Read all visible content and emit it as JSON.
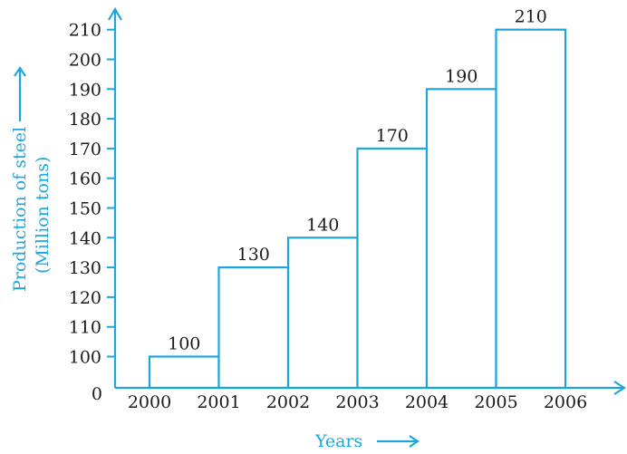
{
  "chart_data": {
    "type": "bar",
    "categories": [
      "2000",
      "2001",
      "2002",
      "2003",
      "2004",
      "2005"
    ],
    "x_ticks": [
      "2000",
      "2001",
      "2002",
      "2003",
      "2004",
      "2005",
      "2006"
    ],
    "values": [
      100,
      130,
      140,
      170,
      190,
      210
    ],
    "data_labels": [
      "100",
      "130",
      "140",
      "170",
      "190",
      "210"
    ],
    "y_ticks": [
      100,
      110,
      120,
      130,
      140,
      150,
      160,
      170,
      180,
      190,
      200,
      210
    ],
    "y_origin_label": "0",
    "y_break": true,
    "ylim": [
      90,
      210
    ],
    "title": "",
    "xlabel": "Years",
    "ylabel_line1": "Production of steel",
    "ylabel_line2": "(Million tons)",
    "grid": false,
    "legend": "none",
    "colors": {
      "axis": "#1ea6dc",
      "bar_fill": "#ffffff",
      "text": "#1a1a1a"
    }
  }
}
